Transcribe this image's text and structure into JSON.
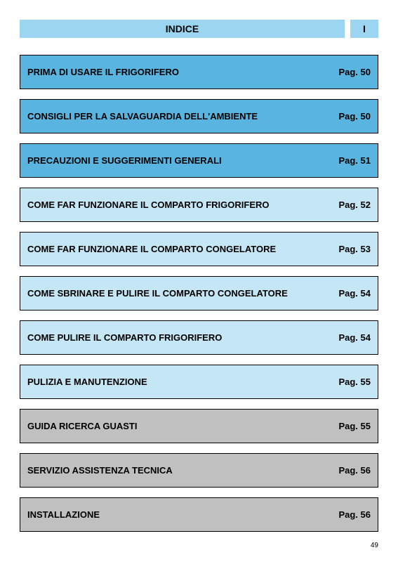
{
  "header": {
    "title": "INDICE",
    "language": "I",
    "bg_color": "#9cd5ef"
  },
  "colors": {
    "dark_blue": "#5ab4e0",
    "light_blue": "#c4e6f5",
    "grey": "#c0c0c0",
    "border": "#000000"
  },
  "entries": [
    {
      "label": "PRIMA DI USARE IL FRIGORIFERO",
      "page": "Pag. 50",
      "color": "dark_blue"
    },
    {
      "label": "CONSIGLI PER LA SALVAGUARDIA DELL'AMBIENTE",
      "page": "Pag. 50",
      "color": "dark_blue"
    },
    {
      "label": "PRECAUZIONI E SUGGERIMENTI GENERALI",
      "page": "Pag. 51",
      "color": "dark_blue"
    },
    {
      "label": "COME FAR FUNZIONARE IL COMPARTO FRIGORIFERO",
      "page": "Pag. 52",
      "color": "light_blue"
    },
    {
      "label": "COME FAR FUNZIONARE IL COMPARTO CONGELATORE",
      "page": "Pag. 53",
      "color": "light_blue"
    },
    {
      "label": "COME SBRINARE E PULIRE IL COMPARTO CONGELATORE",
      "page": "Pag. 54",
      "color": "light_blue"
    },
    {
      "label": "COME PULIRE IL COMPARTO FRIGORIFERO",
      "page": "Pag. 54",
      "color": "light_blue"
    },
    {
      "label": "PULIZIA E MANUTENZIONE",
      "page": "Pag. 55",
      "color": "light_blue"
    },
    {
      "label": "GUIDA RICERCA GUASTI",
      "page": "Pag. 55",
      "color": "grey"
    },
    {
      "label": "SERVIZIO ASSISTENZA TECNICA",
      "page": "Pag. 56",
      "color": "grey"
    },
    {
      "label": "INSTALLAZIONE",
      "page": "Pag. 56",
      "color": "grey"
    }
  ],
  "page_number": "49"
}
